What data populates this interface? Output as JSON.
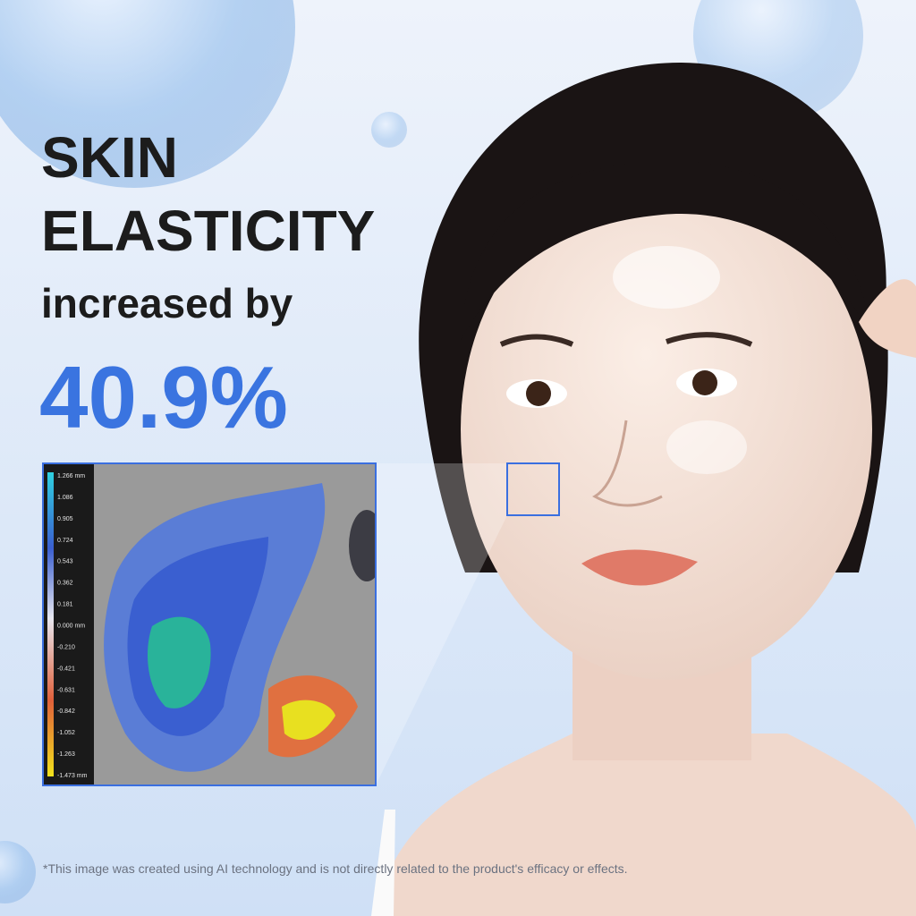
{
  "headline": {
    "line1": "SKIN",
    "line2": "ELASTICITY",
    "line3": "increased by",
    "stat": "40.9%"
  },
  "heatmap": {
    "scale_labels": [
      "1.266 mm",
      "1.086",
      "0.905",
      "0.724",
      "0.543",
      "0.362",
      "0.181",
      "0.000 mm",
      "-0.210",
      "-0.421",
      "-0.631",
      "-0.842",
      "-1.052",
      "-1.263",
      "-1.473 mm"
    ]
  },
  "disclaimer": "*This image was created using AI technology and is not directly related to the product's efficacy or effects."
}
